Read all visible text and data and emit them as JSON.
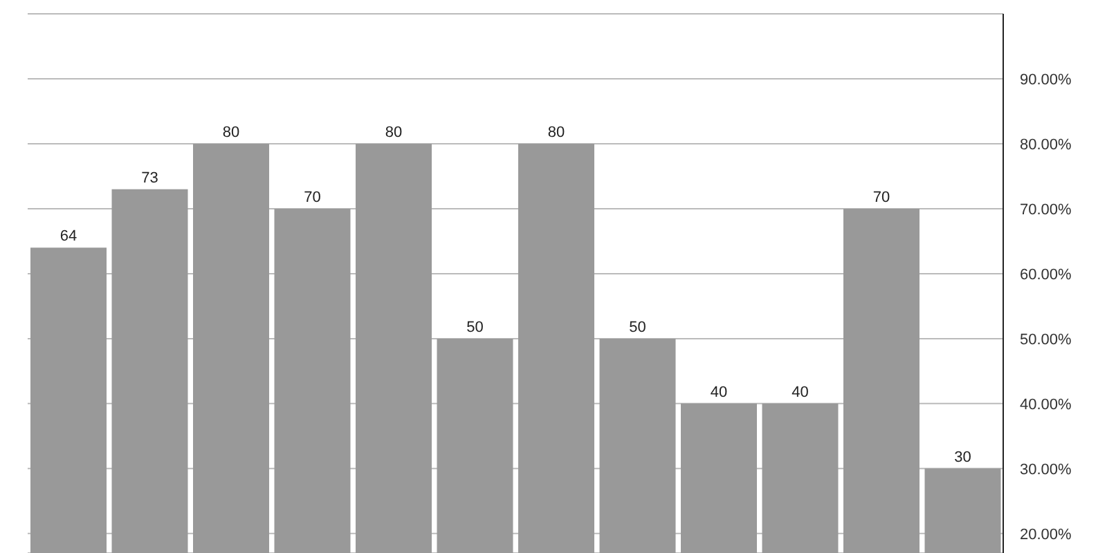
{
  "chart_data": {
    "type": "bar",
    "categories": [
      null,
      null,
      null,
      null,
      null,
      null,
      null,
      null,
      null,
      null,
      null,
      null
    ],
    "values": [
      64,
      73,
      80,
      70,
      80,
      50,
      80,
      50,
      40,
      40,
      70,
      30
    ],
    "color": "#999999",
    "data_labels": true,
    "grid": "y",
    "legend": false,
    "tick_labels": "y",
    "ylim": [
      17,
      100
    ],
    "yticks": [
      {
        "value": 20,
        "label": "20.00%"
      },
      {
        "value": 30,
        "label": "30.00%"
      },
      {
        "value": 40,
        "label": "40.00%"
      },
      {
        "value": 50,
        "label": "50.00%"
      },
      {
        "value": 60,
        "label": "60.00%"
      },
      {
        "value": 70,
        "label": "70.00%"
      },
      {
        "value": 80,
        "label": "80.00%"
      },
      {
        "value": 90,
        "label": "90.00%"
      }
    ]
  }
}
